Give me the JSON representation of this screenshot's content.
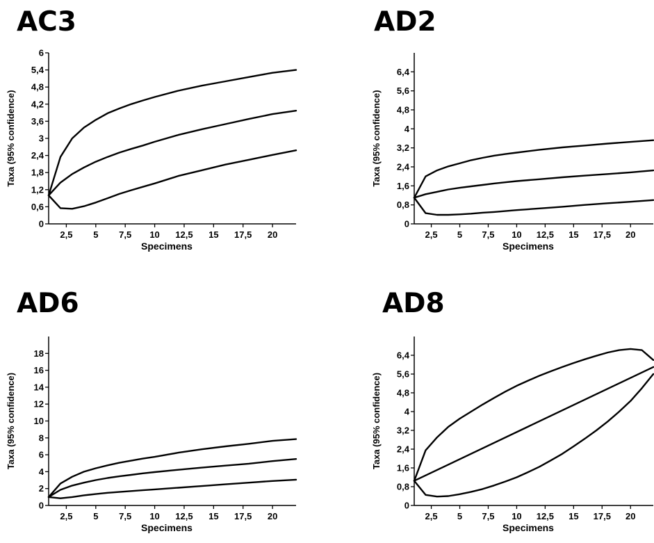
{
  "figure": {
    "line_color": "#000000",
    "background": "#ffffff"
  },
  "chart_data": [
    {
      "type": "line",
      "title": "AC3",
      "xlabel": "Specimens",
      "ylabel": "Taxa (95% confidence)",
      "xlim": [
        1,
        22
      ],
      "ylim": [
        0,
        6
      ],
      "x_ticks": [
        2.5,
        5,
        7.5,
        10,
        12.5,
        15,
        17.5,
        20
      ],
      "x_tick_labels": [
        "2,5",
        "5",
        "7,5",
        "10",
        "12,5",
        "15",
        "17,5",
        "20"
      ],
      "y_ticks": [
        0,
        0.6,
        1.2,
        1.8,
        2.4,
        3,
        3.6,
        4.2,
        4.8,
        5.4,
        6
      ],
      "y_tick_labels": [
        "0",
        "0,6",
        "1,2",
        "1,8",
        "2,4",
        "3",
        "3,6",
        "4,2",
        "4,8",
        "5,4",
        "6"
      ],
      "series": [
        {
          "x": [
            1,
            2,
            3,
            4,
            5,
            6,
            7,
            8,
            9,
            10,
            12,
            14,
            16,
            18,
            20,
            22
          ],
          "values": [
            1.0,
            2.35,
            3.0,
            3.38,
            3.65,
            3.88,
            4.05,
            4.2,
            4.33,
            4.45,
            4.67,
            4.85,
            5.0,
            5.15,
            5.3,
            5.4
          ]
        },
        {
          "x": [
            1,
            2,
            3,
            4,
            5,
            6,
            7,
            8,
            9,
            10,
            12,
            14,
            16,
            18,
            20,
            22
          ],
          "values": [
            1.0,
            1.45,
            1.75,
            1.98,
            2.18,
            2.35,
            2.5,
            2.63,
            2.75,
            2.88,
            3.12,
            3.32,
            3.5,
            3.68,
            3.85,
            3.97
          ]
        },
        {
          "x": [
            1,
            2,
            3,
            4,
            5,
            6,
            7,
            8,
            9,
            10,
            12,
            14,
            16,
            18,
            20,
            22
          ],
          "values": [
            1.0,
            0.55,
            0.53,
            0.62,
            0.75,
            0.9,
            1.05,
            1.18,
            1.3,
            1.42,
            1.68,
            1.88,
            2.08,
            2.25,
            2.42,
            2.58
          ]
        }
      ]
    },
    {
      "type": "line",
      "title": "AD2",
      "xlabel": "Specimens",
      "ylabel": "Taxa (95% confidence)",
      "xlim": [
        1,
        22
      ],
      "ylim": [
        0,
        7.2
      ],
      "x_ticks": [
        2.5,
        5,
        7.5,
        10,
        12.5,
        15,
        17.5,
        20
      ],
      "x_tick_labels": [
        "2,5",
        "5",
        "7,5",
        "10",
        "12,5",
        "15",
        "17,5",
        "20"
      ],
      "y_ticks": [
        0,
        0.8,
        1.6,
        2.4,
        3.2,
        4,
        4.8,
        5.6,
        6.4
      ],
      "y_tick_labels": [
        "0",
        "0,8",
        "1,6",
        "2,4",
        "3,2",
        "4",
        "4,8",
        "5,6",
        "6,4"
      ],
      "series": [
        {
          "x": [
            1,
            2,
            3,
            4,
            5,
            6,
            7,
            8,
            9,
            10,
            12,
            14,
            16,
            18,
            20,
            22
          ],
          "values": [
            1.1,
            2.0,
            2.25,
            2.42,
            2.55,
            2.68,
            2.78,
            2.87,
            2.94,
            3.0,
            3.12,
            3.22,
            3.3,
            3.38,
            3.45,
            3.52
          ]
        },
        {
          "x": [
            1,
            2,
            3,
            4,
            5,
            6,
            7,
            8,
            9,
            10,
            12,
            14,
            16,
            18,
            20,
            22
          ],
          "values": [
            1.1,
            1.25,
            1.35,
            1.45,
            1.52,
            1.58,
            1.64,
            1.7,
            1.75,
            1.8,
            1.88,
            1.96,
            2.03,
            2.1,
            2.17,
            2.25
          ]
        },
        {
          "x": [
            1,
            2,
            3,
            4,
            5,
            6,
            7,
            8,
            9,
            10,
            12,
            14,
            16,
            18,
            20,
            22
          ],
          "values": [
            1.1,
            0.45,
            0.38,
            0.38,
            0.4,
            0.43,
            0.47,
            0.5,
            0.54,
            0.58,
            0.65,
            0.72,
            0.8,
            0.87,
            0.93,
            1.0
          ]
        }
      ]
    },
    {
      "type": "line",
      "title": "AD6",
      "xlabel": "Specimens",
      "ylabel": "Taxa (95% confidence)",
      "xlim": [
        1,
        22
      ],
      "ylim": [
        0,
        20
      ],
      "x_ticks": [
        2.5,
        5,
        7.5,
        10,
        12.5,
        15,
        17.5,
        20
      ],
      "x_tick_labels": [
        "2,5",
        "5",
        "7,5",
        "10",
        "12,5",
        "15",
        "17,5",
        "20"
      ],
      "y_ticks": [
        0,
        2,
        4,
        6,
        8,
        10,
        12,
        14,
        16,
        18
      ],
      "y_tick_labels": [
        "0",
        "2",
        "4",
        "6",
        "8",
        "10",
        "12",
        "14",
        "16",
        "18"
      ],
      "series": [
        {
          "x": [
            1,
            2,
            3,
            4,
            5,
            6,
            7,
            8,
            9,
            10,
            12,
            14,
            16,
            18,
            20,
            22
          ],
          "values": [
            1.0,
            2.6,
            3.4,
            4.0,
            4.4,
            4.75,
            5.05,
            5.3,
            5.55,
            5.75,
            6.25,
            6.65,
            7.0,
            7.3,
            7.65,
            7.85
          ]
        },
        {
          "x": [
            1,
            2,
            3,
            4,
            5,
            6,
            7,
            8,
            9,
            10,
            12,
            14,
            16,
            18,
            20,
            22
          ],
          "values": [
            1.0,
            1.85,
            2.35,
            2.7,
            3.0,
            3.25,
            3.45,
            3.62,
            3.8,
            3.95,
            4.22,
            4.48,
            4.72,
            4.95,
            5.25,
            5.5
          ]
        },
        {
          "x": [
            1,
            2,
            3,
            4,
            5,
            6,
            7,
            8,
            9,
            10,
            12,
            14,
            16,
            18,
            20,
            22
          ],
          "values": [
            1.0,
            0.85,
            1.0,
            1.2,
            1.35,
            1.5,
            1.6,
            1.7,
            1.8,
            1.9,
            2.1,
            2.3,
            2.5,
            2.7,
            2.9,
            3.05
          ]
        }
      ]
    },
    {
      "type": "line",
      "title": "AD8",
      "xlabel": "Specimens",
      "ylabel": "Taxa (95% confidence)",
      "xlim": [
        1,
        22
      ],
      "ylim": [
        0,
        7.2
      ],
      "x_ticks": [
        2.5,
        5,
        7.5,
        10,
        12.5,
        15,
        17.5,
        20
      ],
      "x_tick_labels": [
        "2,5",
        "5",
        "7,5",
        "10",
        "12,5",
        "15",
        "17,5",
        "20"
      ],
      "y_ticks": [
        0,
        0.8,
        1.6,
        2.4,
        3.2,
        4,
        4.8,
        5.6,
        6.4
      ],
      "y_tick_labels": [
        "0",
        "0,8",
        "1,6",
        "2,4",
        "3,2",
        "4",
        "4,8",
        "5,6",
        "6,4"
      ],
      "series": [
        {
          "x": [
            1,
            2,
            3,
            4,
            5,
            6,
            7,
            8,
            9,
            10,
            11,
            12,
            13,
            14,
            15,
            16,
            17,
            18,
            19,
            20,
            21,
            22
          ],
          "values": [
            1.05,
            2.35,
            2.9,
            3.35,
            3.7,
            4.0,
            4.3,
            4.58,
            4.85,
            5.1,
            5.32,
            5.53,
            5.72,
            5.9,
            6.07,
            6.23,
            6.38,
            6.52,
            6.62,
            6.67,
            6.62,
            6.2
          ]
        },
        {
          "x": [
            1,
            22
          ],
          "values": [
            1.05,
            5.9
          ]
        },
        {
          "x": [
            1,
            2,
            3,
            4,
            5,
            6,
            7,
            8,
            9,
            10,
            11,
            12,
            13,
            14,
            15,
            16,
            17,
            18,
            19,
            20,
            21,
            22
          ],
          "values": [
            1.05,
            0.45,
            0.38,
            0.4,
            0.48,
            0.58,
            0.7,
            0.85,
            1.02,
            1.2,
            1.42,
            1.65,
            1.92,
            2.2,
            2.52,
            2.85,
            3.2,
            3.58,
            4.0,
            4.45,
            5.0,
            5.6
          ]
        }
      ]
    }
  ]
}
